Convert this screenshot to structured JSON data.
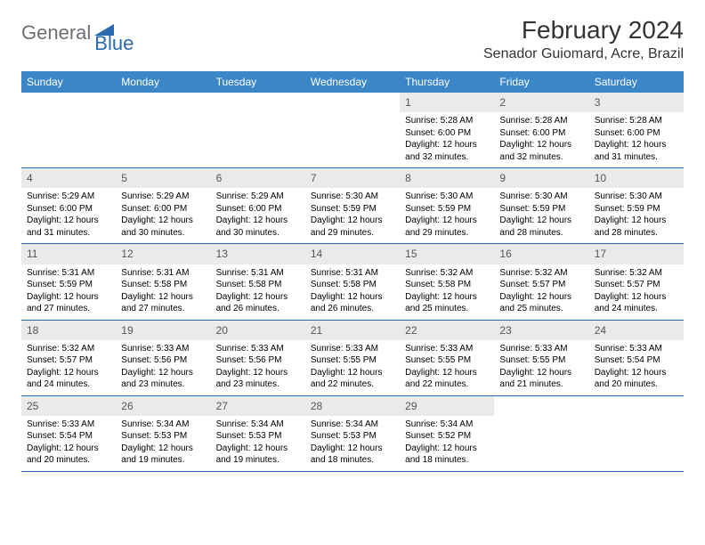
{
  "brand": {
    "part1": "General",
    "part2": "Blue"
  },
  "title": "February 2024",
  "location": "Senador Guiomard, Acre, Brazil",
  "colors": {
    "header_bg": "#3b86c6",
    "daynum_bg": "#e9eaeb",
    "week_border": "#2a6bb0",
    "logo_gray": "#6b6f73",
    "logo_blue": "#2a6bb0"
  },
  "weekdays": [
    "Sunday",
    "Monday",
    "Tuesday",
    "Wednesday",
    "Thursday",
    "Friday",
    "Saturday"
  ],
  "weeks": [
    [
      {
        "n": "",
        "sr": "",
        "ss": "",
        "dl": ""
      },
      {
        "n": "",
        "sr": "",
        "ss": "",
        "dl": ""
      },
      {
        "n": "",
        "sr": "",
        "ss": "",
        "dl": ""
      },
      {
        "n": "",
        "sr": "",
        "ss": "",
        "dl": ""
      },
      {
        "n": "1",
        "sr": "Sunrise: 5:28 AM",
        "ss": "Sunset: 6:00 PM",
        "dl": "Daylight: 12 hours and 32 minutes."
      },
      {
        "n": "2",
        "sr": "Sunrise: 5:28 AM",
        "ss": "Sunset: 6:00 PM",
        "dl": "Daylight: 12 hours and 32 minutes."
      },
      {
        "n": "3",
        "sr": "Sunrise: 5:28 AM",
        "ss": "Sunset: 6:00 PM",
        "dl": "Daylight: 12 hours and 31 minutes."
      }
    ],
    [
      {
        "n": "4",
        "sr": "Sunrise: 5:29 AM",
        "ss": "Sunset: 6:00 PM",
        "dl": "Daylight: 12 hours and 31 minutes."
      },
      {
        "n": "5",
        "sr": "Sunrise: 5:29 AM",
        "ss": "Sunset: 6:00 PM",
        "dl": "Daylight: 12 hours and 30 minutes."
      },
      {
        "n": "6",
        "sr": "Sunrise: 5:29 AM",
        "ss": "Sunset: 6:00 PM",
        "dl": "Daylight: 12 hours and 30 minutes."
      },
      {
        "n": "7",
        "sr": "Sunrise: 5:30 AM",
        "ss": "Sunset: 5:59 PM",
        "dl": "Daylight: 12 hours and 29 minutes."
      },
      {
        "n": "8",
        "sr": "Sunrise: 5:30 AM",
        "ss": "Sunset: 5:59 PM",
        "dl": "Daylight: 12 hours and 29 minutes."
      },
      {
        "n": "9",
        "sr": "Sunrise: 5:30 AM",
        "ss": "Sunset: 5:59 PM",
        "dl": "Daylight: 12 hours and 28 minutes."
      },
      {
        "n": "10",
        "sr": "Sunrise: 5:30 AM",
        "ss": "Sunset: 5:59 PM",
        "dl": "Daylight: 12 hours and 28 minutes."
      }
    ],
    [
      {
        "n": "11",
        "sr": "Sunrise: 5:31 AM",
        "ss": "Sunset: 5:59 PM",
        "dl": "Daylight: 12 hours and 27 minutes."
      },
      {
        "n": "12",
        "sr": "Sunrise: 5:31 AM",
        "ss": "Sunset: 5:58 PM",
        "dl": "Daylight: 12 hours and 27 minutes."
      },
      {
        "n": "13",
        "sr": "Sunrise: 5:31 AM",
        "ss": "Sunset: 5:58 PM",
        "dl": "Daylight: 12 hours and 26 minutes."
      },
      {
        "n": "14",
        "sr": "Sunrise: 5:31 AM",
        "ss": "Sunset: 5:58 PM",
        "dl": "Daylight: 12 hours and 26 minutes."
      },
      {
        "n": "15",
        "sr": "Sunrise: 5:32 AM",
        "ss": "Sunset: 5:58 PM",
        "dl": "Daylight: 12 hours and 25 minutes."
      },
      {
        "n": "16",
        "sr": "Sunrise: 5:32 AM",
        "ss": "Sunset: 5:57 PM",
        "dl": "Daylight: 12 hours and 25 minutes."
      },
      {
        "n": "17",
        "sr": "Sunrise: 5:32 AM",
        "ss": "Sunset: 5:57 PM",
        "dl": "Daylight: 12 hours and 24 minutes."
      }
    ],
    [
      {
        "n": "18",
        "sr": "Sunrise: 5:32 AM",
        "ss": "Sunset: 5:57 PM",
        "dl": "Daylight: 12 hours and 24 minutes."
      },
      {
        "n": "19",
        "sr": "Sunrise: 5:33 AM",
        "ss": "Sunset: 5:56 PM",
        "dl": "Daylight: 12 hours and 23 minutes."
      },
      {
        "n": "20",
        "sr": "Sunrise: 5:33 AM",
        "ss": "Sunset: 5:56 PM",
        "dl": "Daylight: 12 hours and 23 minutes."
      },
      {
        "n": "21",
        "sr": "Sunrise: 5:33 AM",
        "ss": "Sunset: 5:55 PM",
        "dl": "Daylight: 12 hours and 22 minutes."
      },
      {
        "n": "22",
        "sr": "Sunrise: 5:33 AM",
        "ss": "Sunset: 5:55 PM",
        "dl": "Daylight: 12 hours and 22 minutes."
      },
      {
        "n": "23",
        "sr": "Sunrise: 5:33 AM",
        "ss": "Sunset: 5:55 PM",
        "dl": "Daylight: 12 hours and 21 minutes."
      },
      {
        "n": "24",
        "sr": "Sunrise: 5:33 AM",
        "ss": "Sunset: 5:54 PM",
        "dl": "Daylight: 12 hours and 20 minutes."
      }
    ],
    [
      {
        "n": "25",
        "sr": "Sunrise: 5:33 AM",
        "ss": "Sunset: 5:54 PM",
        "dl": "Daylight: 12 hours and 20 minutes."
      },
      {
        "n": "26",
        "sr": "Sunrise: 5:34 AM",
        "ss": "Sunset: 5:53 PM",
        "dl": "Daylight: 12 hours and 19 minutes."
      },
      {
        "n": "27",
        "sr": "Sunrise: 5:34 AM",
        "ss": "Sunset: 5:53 PM",
        "dl": "Daylight: 12 hours and 19 minutes."
      },
      {
        "n": "28",
        "sr": "Sunrise: 5:34 AM",
        "ss": "Sunset: 5:53 PM",
        "dl": "Daylight: 12 hours and 18 minutes."
      },
      {
        "n": "29",
        "sr": "Sunrise: 5:34 AM",
        "ss": "Sunset: 5:52 PM",
        "dl": "Daylight: 12 hours and 18 minutes."
      },
      {
        "n": "",
        "sr": "",
        "ss": "",
        "dl": ""
      },
      {
        "n": "",
        "sr": "",
        "ss": "",
        "dl": ""
      }
    ]
  ]
}
